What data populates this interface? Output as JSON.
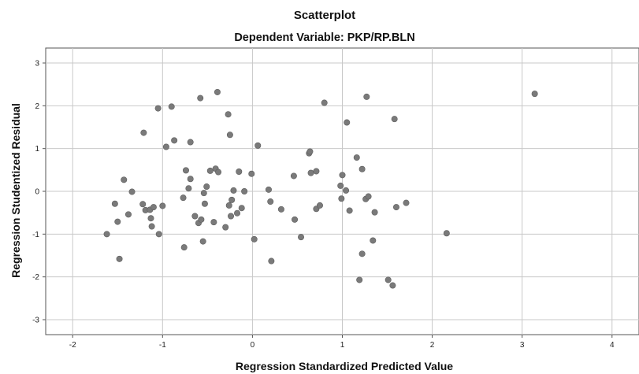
{
  "chart_data": {
    "type": "scatter",
    "title": "Scatterplot",
    "subtitle": "Dependent Variable: PKP/RP.BLN",
    "xlabel": "Regression Standardized Predicted Value",
    "ylabel": "Regression Studentized Residual",
    "xlim": [
      -2.3,
      4.3
    ],
    "ylim": [
      -3.35,
      3.35
    ],
    "xticks": [
      "-2",
      "-1",
      "0",
      "1",
      "2",
      "3",
      "4"
    ],
    "yticks": [
      "3",
      "2",
      "1",
      "0",
      "-1",
      "-2",
      "-3"
    ],
    "grid": true,
    "marker_color": "#7a7a7a",
    "points": [
      {
        "x": 3.14,
        "y": 2.28
      },
      {
        "x": 2.16,
        "y": -0.98
      },
      {
        "x": -1.62,
        "y": -1.0
      },
      {
        "x": -1.53,
        "y": -0.29
      },
      {
        "x": -1.5,
        "y": -0.71
      },
      {
        "x": -1.48,
        "y": -1.58
      },
      {
        "x": -1.43,
        "y": 0.27
      },
      {
        "x": -1.38,
        "y": -0.54
      },
      {
        "x": -1.34,
        "y": -0.01
      },
      {
        "x": -1.22,
        "y": -0.3
      },
      {
        "x": -1.21,
        "y": 1.37
      },
      {
        "x": -1.19,
        "y": -0.44
      },
      {
        "x": -1.14,
        "y": -0.43
      },
      {
        "x": -1.13,
        "y": -0.63
      },
      {
        "x": -1.12,
        "y": -0.82
      },
      {
        "x": -1.1,
        "y": -0.37
      },
      {
        "x": -1.05,
        "y": 1.94
      },
      {
        "x": -1.04,
        "y": -1.0
      },
      {
        "x": -1.0,
        "y": -0.34
      },
      {
        "x": -0.96,
        "y": 1.04
      },
      {
        "x": -0.9,
        "y": 1.98
      },
      {
        "x": -0.87,
        "y": 1.19
      },
      {
        "x": -0.77,
        "y": -0.15
      },
      {
        "x": -0.76,
        "y": -1.31
      },
      {
        "x": -0.74,
        "y": 0.49
      },
      {
        "x": -0.71,
        "y": 0.07
      },
      {
        "x": -0.69,
        "y": 1.15
      },
      {
        "x": -0.69,
        "y": 0.29
      },
      {
        "x": -0.64,
        "y": -0.58
      },
      {
        "x": -0.6,
        "y": -0.74
      },
      {
        "x": -0.58,
        "y": 2.18
      },
      {
        "x": -0.57,
        "y": -0.66
      },
      {
        "x": -0.55,
        "y": -1.17
      },
      {
        "x": -0.54,
        "y": -0.04
      },
      {
        "x": -0.53,
        "y": -0.29
      },
      {
        "x": -0.51,
        "y": 0.11
      },
      {
        "x": -0.47,
        "y": 0.48
      },
      {
        "x": -0.43,
        "y": -0.72
      },
      {
        "x": -0.41,
        "y": 0.53
      },
      {
        "x": -0.39,
        "y": 2.32
      },
      {
        "x": -0.38,
        "y": 0.45
      },
      {
        "x": -0.3,
        "y": -0.84
      },
      {
        "x": -0.27,
        "y": 1.8
      },
      {
        "x": -0.26,
        "y": -0.33
      },
      {
        "x": -0.25,
        "y": 1.32
      },
      {
        "x": -0.24,
        "y": -0.58
      },
      {
        "x": -0.23,
        "y": -0.2
      },
      {
        "x": -0.21,
        "y": 0.02
      },
      {
        "x": -0.17,
        "y": -0.51
      },
      {
        "x": -0.15,
        "y": 0.46
      },
      {
        "x": -0.12,
        "y": -0.39
      },
      {
        "x": -0.09,
        "y": 0.0
      },
      {
        "x": -0.01,
        "y": 0.41
      },
      {
        "x": 0.02,
        "y": -1.12
      },
      {
        "x": 0.06,
        "y": 1.07
      },
      {
        "x": 0.18,
        "y": 0.04
      },
      {
        "x": 0.2,
        "y": -0.24
      },
      {
        "x": 0.21,
        "y": -1.63
      },
      {
        "x": 0.32,
        "y": -0.42
      },
      {
        "x": 0.46,
        "y": 0.36
      },
      {
        "x": 0.47,
        "y": -0.66
      },
      {
        "x": 0.54,
        "y": -1.07
      },
      {
        "x": 0.63,
        "y": 0.89
      },
      {
        "x": 0.64,
        "y": 0.93
      },
      {
        "x": 0.65,
        "y": 0.43
      },
      {
        "x": 0.71,
        "y": -0.41
      },
      {
        "x": 0.71,
        "y": 0.47
      },
      {
        "x": 0.75,
        "y": -0.33
      },
      {
        "x": 0.8,
        "y": 2.07
      },
      {
        "x": 0.98,
        "y": 0.13
      },
      {
        "x": 0.99,
        "y": -0.17
      },
      {
        "x": 1.0,
        "y": 0.38
      },
      {
        "x": 1.04,
        "y": 0.02
      },
      {
        "x": 1.05,
        "y": 1.61
      },
      {
        "x": 1.08,
        "y": -0.45
      },
      {
        "x": 1.16,
        "y": 0.79
      },
      {
        "x": 1.19,
        "y": -2.07
      },
      {
        "x": 1.22,
        "y": 0.52
      },
      {
        "x": 1.22,
        "y": -1.46
      },
      {
        "x": 1.26,
        "y": -0.18
      },
      {
        "x": 1.27,
        "y": 2.21
      },
      {
        "x": 1.29,
        "y": -0.12
      },
      {
        "x": 1.34,
        "y": -1.15
      },
      {
        "x": 1.36,
        "y": -0.49
      },
      {
        "x": 1.51,
        "y": -2.07
      },
      {
        "x": 1.56,
        "y": -2.2
      },
      {
        "x": 1.58,
        "y": 1.69
      },
      {
        "x": 1.6,
        "y": -0.37
      },
      {
        "x": 1.71,
        "y": -0.27
      }
    ]
  }
}
